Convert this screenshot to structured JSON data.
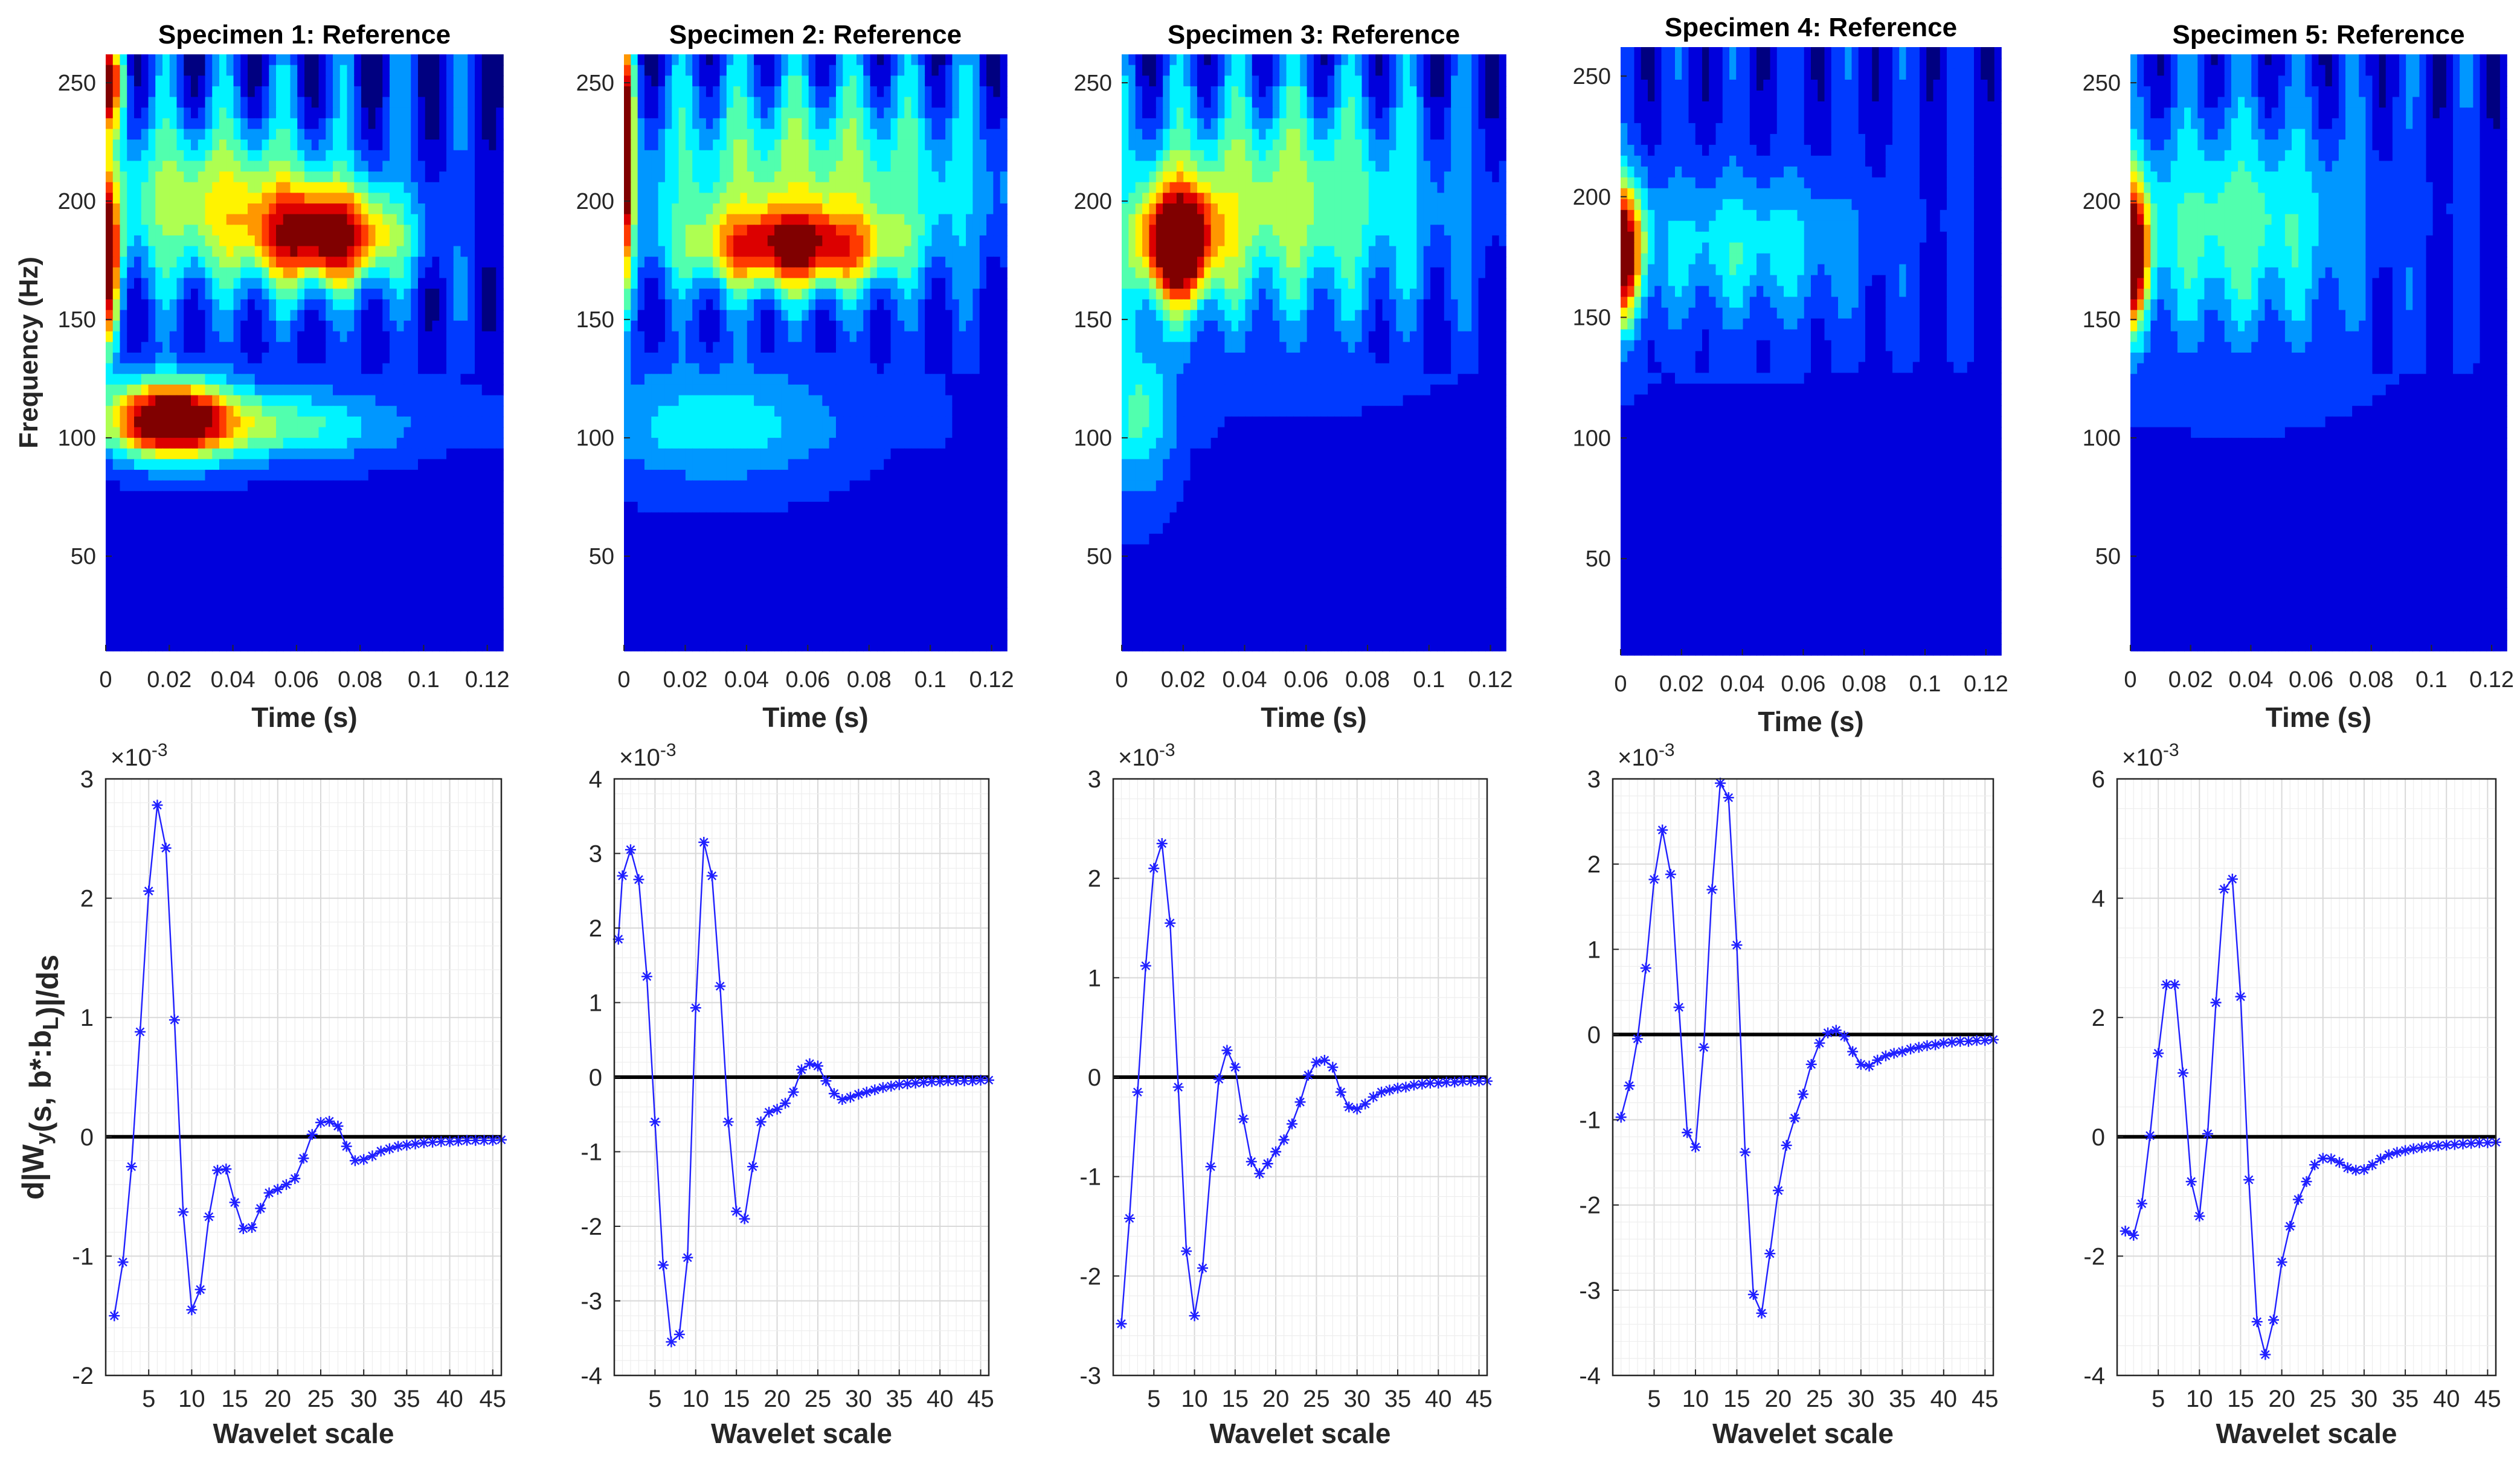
{
  "figure": {
    "description_free": true
  },
  "chart_data": [
    {
      "type": "heatmap",
      "panel": 1,
      "title": "Specimen 1: Reference",
      "xlabel": "Time (s)",
      "ylabel": "Frequency (Hz)",
      "show_ylabel": true,
      "xlim": [
        0,
        0.125
      ],
      "ylim": [
        10,
        262
      ],
      "xticks": [
        0,
        0.02,
        0.04,
        0.06,
        0.08,
        0.1,
        0.12
      ],
      "xtick_labels": [
        "0",
        "0.02",
        "0.04",
        "0.06",
        "0.08",
        "0.1",
        "0.12"
      ],
      "yticks": [
        50,
        100,
        150,
        200,
        250
      ],
      "blobs": [
        {
          "t": 0.0,
          "f": 175,
          "st": 0.004,
          "sf": 35,
          "a": 0.95
        },
        {
          "t": 0.02,
          "f": 108,
          "st": 0.018,
          "sf": 16,
          "a": 0.98
        },
        {
          "t": 0.07,
          "f": 185,
          "st": 0.022,
          "sf": 20,
          "a": 0.82
        },
        {
          "t": 0.035,
          "f": 200,
          "st": 0.04,
          "sf": 35,
          "a": 0.45
        },
        {
          "t": 0.05,
          "f": 105,
          "st": 0.04,
          "sf": 15,
          "a": 0.35
        },
        {
          "t": 0.0,
          "f": 250,
          "st": 0.006,
          "sf": 20,
          "a": 0.8
        }
      ],
      "ripple": 0.18
    },
    {
      "type": "heatmap",
      "panel": 2,
      "title": "Specimen 2: Reference",
      "xlabel": "Time (s)",
      "ylabel": "",
      "show_ylabel": false,
      "xlim": [
        0,
        0.125
      ],
      "ylim": [
        10,
        262
      ],
      "xticks": [
        0,
        0.02,
        0.04,
        0.06,
        0.08,
        0.1,
        0.12
      ],
      "xtick_labels": [
        "0",
        "0.02",
        "0.04",
        "0.06",
        "0.08",
        "0.1",
        "0.12"
      ],
      "yticks": [
        50,
        100,
        150,
        200,
        250
      ],
      "blobs": [
        {
          "t": 0.0,
          "f": 220,
          "st": 0.003,
          "sf": 50,
          "a": 0.98
        },
        {
          "t": 0.055,
          "f": 180,
          "st": 0.03,
          "sf": 17,
          "a": 0.72
        },
        {
          "t": 0.06,
          "f": 210,
          "st": 0.06,
          "sf": 40,
          "a": 0.38
        },
        {
          "t": 0.03,
          "f": 105,
          "st": 0.04,
          "sf": 25,
          "a": 0.25
        }
      ],
      "ripple": 0.16
    },
    {
      "type": "heatmap",
      "panel": 3,
      "title": "Specimen 3: Reference",
      "xlabel": "Time (s)",
      "ylabel": "",
      "show_ylabel": false,
      "xlim": [
        0,
        0.125
      ],
      "ylim": [
        10,
        262
      ],
      "xticks": [
        0,
        0.02,
        0.04,
        0.06,
        0.08,
        0.1,
        0.12
      ],
      "xtick_labels": [
        "0",
        "0.02",
        "0.04",
        "0.06",
        "0.08",
        "0.1",
        "0.12"
      ],
      "yticks": [
        50,
        100,
        150,
        200,
        250
      ],
      "blobs": [
        {
          "t": 0.018,
          "f": 182,
          "st": 0.012,
          "sf": 24,
          "a": 1.0
        },
        {
          "t": 0.05,
          "f": 200,
          "st": 0.05,
          "sf": 45,
          "a": 0.42
        },
        {
          "t": 0.005,
          "f": 110,
          "st": 0.012,
          "sf": 35,
          "a": 0.3
        }
      ],
      "ripple": 0.16
    },
    {
      "type": "heatmap",
      "panel": 4,
      "title": "Specimen 4: Reference",
      "xlabel": "Time (s)",
      "ylabel": "",
      "show_ylabel": false,
      "xlim": [
        0,
        0.125
      ],
      "ylim": [
        10,
        262
      ],
      "xticks": [
        0,
        0.02,
        0.04,
        0.06,
        0.08,
        0.1,
        0.12
      ],
      "xtick_labels": [
        "0",
        "0.02",
        "0.04",
        "0.06",
        "0.08",
        "0.1",
        "0.12"
      ],
      "yticks": [
        50,
        100,
        150,
        200,
        250
      ],
      "blobs": [
        {
          "t": 0.0,
          "f": 178,
          "st": 0.007,
          "sf": 28,
          "a": 1.0
        },
        {
          "t": 0.04,
          "f": 180,
          "st": 0.04,
          "sf": 30,
          "a": 0.25
        }
      ],
      "ripple": 0.1
    },
    {
      "type": "heatmap",
      "panel": 5,
      "title": "Specimen 5: Reference",
      "xlabel": "Time (s)",
      "ylabel": "",
      "show_ylabel": false,
      "xlim": [
        0,
        0.125
      ],
      "ylim": [
        10,
        262
      ],
      "xticks": [
        0,
        0.02,
        0.04,
        0.06,
        0.08,
        0.1,
        0.12
      ],
      "xtick_labels": [
        "0",
        "0.02",
        "0.04",
        "0.06",
        "0.08",
        "0.1",
        "0.12"
      ],
      "yticks": [
        50,
        100,
        150,
        200,
        250
      ],
      "blobs": [
        {
          "t": 0.0,
          "f": 178,
          "st": 0.006,
          "sf": 30,
          "a": 1.0
        },
        {
          "t": 0.035,
          "f": 190,
          "st": 0.04,
          "sf": 45,
          "a": 0.33
        }
      ],
      "ripple": 0.12
    },
    {
      "type": "line",
      "panel": 6,
      "xlabel": "Wavelet scale",
      "ylabel": "d|W_y(s, b*:b_L)|/ds",
      "show_ylabel": true,
      "exponent": "×10^-3",
      "xlim": [
        0,
        46
      ],
      "ylim": [
        -2,
        3
      ],
      "xticks": [
        5,
        10,
        15,
        20,
        25,
        30,
        35,
        40,
        45
      ],
      "yticks": [
        -2,
        -1,
        0,
        1,
        2,
        3
      ],
      "x": [
        1,
        2,
        3,
        4,
        5,
        6,
        7,
        8,
        9,
        10,
        11,
        12,
        13,
        14,
        15,
        16,
        17,
        18,
        19,
        20,
        21,
        22,
        23,
        24,
        25,
        26,
        27,
        28,
        29,
        30,
        31,
        32,
        33,
        34,
        35,
        36,
        37,
        38,
        39,
        40,
        41,
        42,
        43,
        44,
        45,
        46
      ],
      "y": [
        -1.5,
        -1.05,
        -0.25,
        0.88,
        2.06,
        2.78,
        2.42,
        0.98,
        -0.63,
        -1.45,
        -1.28,
        -0.67,
        -0.28,
        -0.27,
        -0.55,
        -0.77,
        -0.76,
        -0.6,
        -0.47,
        -0.44,
        -0.4,
        -0.35,
        -0.18,
        0.02,
        0.12,
        0.13,
        0.09,
        -0.08,
        -0.2,
        -0.19,
        -0.16,
        -0.12,
        -0.1,
        -0.08,
        -0.07,
        -0.06,
        -0.05,
        -0.045,
        -0.04,
        -0.04,
        -0.035,
        -0.03,
        -0.03,
        -0.03,
        -0.03,
        -0.025
      ]
    },
    {
      "type": "line",
      "panel": 7,
      "xlabel": "Wavelet scale",
      "ylabel": "",
      "show_ylabel": false,
      "exponent": "×10^-3",
      "xlim": [
        0,
        46
      ],
      "ylim": [
        -4,
        4
      ],
      "xticks": [
        5,
        10,
        15,
        20,
        25,
        30,
        35,
        40,
        45
      ],
      "yticks": [
        -4,
        -3,
        -2,
        -1,
        0,
        1,
        2,
        3,
        4
      ],
      "x": [
        0.5,
        1,
        2,
        3,
        4,
        5,
        6,
        7,
        8,
        9,
        10,
        11,
        12,
        13,
        14,
        15,
        16,
        17,
        18,
        19,
        20,
        21,
        22,
        23,
        24,
        25,
        26,
        27,
        28,
        29,
        30,
        31,
        32,
        33,
        34,
        35,
        36,
        37,
        38,
        39,
        40,
        41,
        42,
        43,
        44,
        45,
        46
      ],
      "y": [
        1.85,
        2.7,
        3.05,
        2.65,
        1.35,
        -0.6,
        -2.52,
        -3.55,
        -3.45,
        -2.42,
        0.93,
        3.15,
        2.7,
        1.22,
        -0.6,
        -1.8,
        -1.9,
        -1.2,
        -0.6,
        -0.47,
        -0.43,
        -0.35,
        -0.2,
        0.1,
        0.18,
        0.15,
        -0.05,
        -0.22,
        -0.3,
        -0.27,
        -0.23,
        -0.2,
        -0.17,
        -0.14,
        -0.12,
        -0.1,
        -0.09,
        -0.08,
        -0.07,
        -0.06,
        -0.06,
        -0.05,
        -0.05,
        -0.05,
        -0.05,
        -0.04,
        -0.04
      ]
    },
    {
      "type": "line",
      "panel": 8,
      "xlabel": "Wavelet scale",
      "ylabel": "",
      "show_ylabel": false,
      "exponent": "×10^-3",
      "xlim": [
        0,
        46
      ],
      "ylim": [
        -3,
        3
      ],
      "xticks": [
        5,
        10,
        15,
        20,
        25,
        30,
        35,
        40,
        45
      ],
      "yticks": [
        -3,
        -2,
        -1,
        0,
        1,
        2,
        3
      ],
      "x": [
        1,
        2,
        3,
        4,
        5,
        6,
        7,
        8,
        9,
        10,
        11,
        12,
        13,
        14,
        15,
        16,
        17,
        18,
        19,
        20,
        21,
        22,
        23,
        24,
        25,
        26,
        27,
        28,
        29,
        30,
        31,
        32,
        33,
        34,
        35,
        36,
        37,
        38,
        39,
        40,
        41,
        42,
        43,
        44,
        45,
        46
      ],
      "y": [
        -2.48,
        -1.42,
        -0.15,
        1.12,
        2.1,
        2.35,
        1.55,
        -0.1,
        -1.75,
        -2.4,
        -1.92,
        -0.9,
        -0.02,
        0.27,
        0.1,
        -0.42,
        -0.85,
        -0.97,
        -0.87,
        -0.75,
        -0.63,
        -0.47,
        -0.25,
        0.02,
        0.15,
        0.17,
        0.1,
        -0.15,
        -0.3,
        -0.32,
        -0.27,
        -0.2,
        -0.15,
        -0.13,
        -0.11,
        -0.1,
        -0.08,
        -0.07,
        -0.06,
        -0.06,
        -0.05,
        -0.05,
        -0.04,
        -0.04,
        -0.04,
        -0.04
      ]
    },
    {
      "type": "line",
      "panel": 9,
      "xlabel": "Wavelet scale",
      "ylabel": "",
      "show_ylabel": false,
      "exponent": "×10^-3",
      "xlim": [
        0,
        46
      ],
      "ylim": [
        -4,
        3
      ],
      "xticks": [
        5,
        10,
        15,
        20,
        25,
        30,
        35,
        40,
        45
      ],
      "yticks": [
        -4,
        -3,
        -2,
        -1,
        0,
        1,
        2,
        3
      ],
      "x": [
        1,
        2,
        3,
        4,
        5,
        6,
        7,
        8,
        9,
        10,
        11,
        12,
        13,
        14,
        15,
        16,
        17,
        18,
        19,
        20,
        21,
        22,
        23,
        24,
        25,
        26,
        27,
        28,
        29,
        30,
        31,
        32,
        33,
        34,
        35,
        36,
        37,
        38,
        39,
        40,
        41,
        42,
        43,
        44,
        45,
        46
      ],
      "y": [
        -0.97,
        -0.6,
        -0.05,
        0.78,
        1.82,
        2.4,
        1.88,
        0.32,
        -1.15,
        -1.32,
        -0.15,
        1.7,
        2.95,
        2.78,
        1.05,
        -1.38,
        -3.05,
        -3.27,
        -2.57,
        -1.83,
        -1.3,
        -0.98,
        -0.7,
        -0.35,
        -0.1,
        0.02,
        0.05,
        -0.02,
        -0.2,
        -0.35,
        -0.37,
        -0.3,
        -0.25,
        -0.22,
        -0.2,
        -0.17,
        -0.15,
        -0.13,
        -0.12,
        -0.1,
        -0.09,
        -0.08,
        -0.08,
        -0.07,
        -0.07,
        -0.06
      ]
    },
    {
      "type": "line",
      "panel": 10,
      "xlabel": "Wavelet scale",
      "ylabel": "",
      "show_ylabel": false,
      "exponent": "×10^-3",
      "xlim": [
        0,
        46
      ],
      "ylim": [
        -4,
        6
      ],
      "xticks": [
        5,
        10,
        15,
        20,
        25,
        30,
        35,
        40,
        45
      ],
      "yticks": [
        -4,
        -2,
        0,
        2,
        4,
        6
      ],
      "x": [
        1,
        2,
        3,
        4,
        5,
        6,
        7,
        8,
        9,
        10,
        11,
        12,
        13,
        14,
        15,
        16,
        17,
        18,
        19,
        20,
        21,
        22,
        23,
        24,
        25,
        26,
        27,
        28,
        29,
        30,
        31,
        32,
        33,
        34,
        35,
        36,
        37,
        38,
        39,
        40,
        41,
        42,
        43,
        44,
        45,
        46
      ],
      "y": [
        -1.58,
        -1.65,
        -1.12,
        0.02,
        1.4,
        2.55,
        2.55,
        1.07,
        -0.75,
        -1.33,
        0.05,
        2.25,
        4.15,
        4.32,
        2.35,
        -0.72,
        -3.1,
        -3.65,
        -3.07,
        -2.1,
        -1.5,
        -1.05,
        -0.75,
        -0.47,
        -0.36,
        -0.37,
        -0.43,
        -0.52,
        -0.56,
        -0.55,
        -0.47,
        -0.37,
        -0.3,
        -0.26,
        -0.23,
        -0.2,
        -0.18,
        -0.16,
        -0.15,
        -0.14,
        -0.13,
        -0.12,
        -0.11,
        -0.1,
        -0.1,
        -0.09
      ]
    }
  ]
}
